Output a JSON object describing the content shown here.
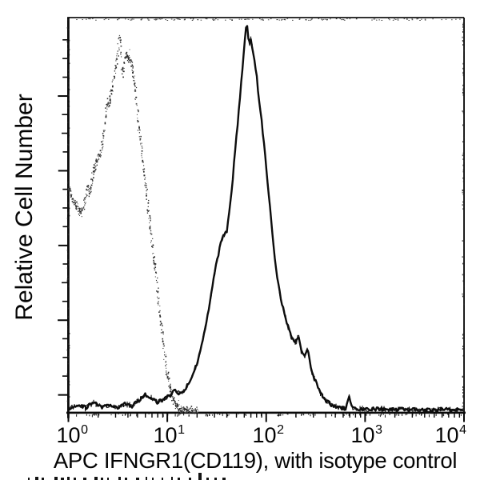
{
  "figure": {
    "y_axis_label": "Relative Cell Number",
    "x_axis_label": "APC IFNGR1(CD119), with isotype control"
  },
  "chart_data": {
    "type": "line",
    "subtype": "flow-cytometry-histogram-overlay",
    "title": "",
    "xlabel": "APC IFNGR1(CD119), with isotype control",
    "ylabel": "Relative Cell Number",
    "x_scale": "log10",
    "xlim": [
      1,
      10000
    ],
    "x_tick_base": "10",
    "x_tick_exponents": [
      "0",
      "1",
      "2",
      "3",
      "4"
    ],
    "y_axis_ticks": "unlabeled relative scale",
    "grid": false,
    "legend": "none",
    "ink_color": "#0d0d0d",
    "series": [
      {
        "name": "isotype control",
        "style": "dotted",
        "color": "#282828",
        "peak_x": 3.25,
        "points": [
          [
            1.0,
            56.5
          ],
          [
            1.08,
            54.5
          ],
          [
            1.16,
            53
          ],
          [
            1.25,
            51.5
          ],
          [
            1.33,
            50.5
          ],
          [
            1.42,
            52
          ],
          [
            1.5,
            55
          ],
          [
            1.56,
            57.5
          ],
          [
            1.63,
            55.5
          ],
          [
            1.7,
            58
          ],
          [
            1.78,
            61
          ],
          [
            1.87,
            63
          ],
          [
            1.97,
            64.3
          ],
          [
            2.07,
            65
          ],
          [
            2.18,
            68
          ],
          [
            2.28,
            72
          ],
          [
            2.38,
            77
          ],
          [
            2.5,
            78.3
          ],
          [
            2.62,
            79.5
          ],
          [
            2.75,
            82
          ],
          [
            2.88,
            85
          ],
          [
            3.0,
            88
          ],
          [
            3.12,
            91
          ],
          [
            3.25,
            95.5
          ],
          [
            3.35,
            93
          ],
          [
            3.45,
            85.5
          ],
          [
            3.6,
            88
          ],
          [
            3.75,
            90.5
          ],
          [
            3.95,
            90
          ],
          [
            4.15,
            89.5
          ],
          [
            4.35,
            88
          ],
          [
            4.6,
            84
          ],
          [
            4.85,
            78.5
          ],
          [
            5.1,
            72.5
          ],
          [
            5.4,
            67.5
          ],
          [
            5.75,
            61.5
          ],
          [
            6.1,
            55.5
          ],
          [
            6.5,
            49.5
          ],
          [
            6.9,
            44
          ],
          [
            7.3,
            38.5
          ],
          [
            7.75,
            32.5
          ],
          [
            8.2,
            26.5
          ],
          [
            8.7,
            21
          ],
          [
            9.3,
            15
          ],
          [
            9.9,
            10
          ],
          [
            10.6,
            6
          ],
          [
            11.4,
            3.3
          ],
          [
            12.3,
            1.8
          ],
          [
            13.5,
            1.0
          ],
          [
            15,
            0.6
          ],
          [
            17,
            0.4
          ],
          [
            20,
            0.3
          ]
        ]
      },
      {
        "name": "APC IFNGR1(CD119)",
        "style": "solid",
        "color": "#0d0d0d",
        "peak_x": 64,
        "points": [
          [
            1.0,
            1.0
          ],
          [
            1.25,
            1.8
          ],
          [
            1.5,
            1.2
          ],
          [
            1.8,
            2.4
          ],
          [
            2.2,
            1.4
          ],
          [
            2.6,
            1.8
          ],
          [
            3.1,
            1.3
          ],
          [
            3.7,
            2.1
          ],
          [
            4.4,
            1.6
          ],
          [
            5.2,
            3.0
          ],
          [
            6.0,
            4.6
          ],
          [
            6.9,
            3.6
          ],
          [
            7.9,
            2.6
          ],
          [
            9.1,
            3.3
          ],
          [
            10.5,
            4.1
          ],
          [
            12,
            5.6
          ],
          [
            13.8,
            4.6
          ],
          [
            15.8,
            6.6
          ],
          [
            18,
            9.5
          ],
          [
            20.5,
            13
          ],
          [
            23.5,
            20
          ],
          [
            27,
            28
          ],
          [
            31,
            37
          ],
          [
            35.5,
            44
          ],
          [
            40,
            46
          ],
          [
            43,
            52
          ],
          [
            45.5,
            58
          ],
          [
            48,
            65
          ],
          [
            51,
            72
          ],
          [
            54,
            79
          ],
          [
            57,
            86
          ],
          [
            60,
            92
          ],
          [
            62,
            97
          ],
          [
            64.5,
            97.8
          ],
          [
            67,
            93
          ],
          [
            70,
            94.5
          ],
          [
            73,
            92
          ],
          [
            76,
            89
          ],
          [
            79.5,
            86
          ],
          [
            83,
            81
          ],
          [
            88,
            76
          ],
          [
            94,
            69
          ],
          [
            100,
            62
          ],
          [
            107,
            54.5
          ],
          [
            114,
            47
          ],
          [
            121,
            40
          ],
          [
            129,
            34
          ],
          [
            140,
            29
          ],
          [
            152,
            25.5
          ],
          [
            165,
            22
          ],
          [
            180,
            19
          ],
          [
            200,
            17.5
          ],
          [
            212,
            20
          ],
          [
            225,
            15.5
          ],
          [
            245,
            14
          ],
          [
            262,
            16.5
          ],
          [
            285,
            10.5
          ],
          [
            320,
            7.5
          ],
          [
            360,
            4.5
          ],
          [
            410,
            2.8
          ],
          [
            465,
            1.8
          ],
          [
            550,
            1.2
          ],
          [
            640,
            1.0
          ],
          [
            690,
            4.0
          ],
          [
            740,
            1.0
          ],
          [
            830,
            0.8
          ],
          [
            1050,
            0.7
          ],
          [
            1350,
            0.9
          ],
          [
            1750,
            0.6
          ],
          [
            2250,
            0.8
          ],
          [
            2900,
            0.6
          ],
          [
            3700,
            0.7
          ],
          [
            4800,
            0.5
          ],
          [
            6200,
            0.8
          ],
          [
            8000,
            0.6
          ],
          [
            10000,
            0.7
          ]
        ]
      }
    ]
  }
}
